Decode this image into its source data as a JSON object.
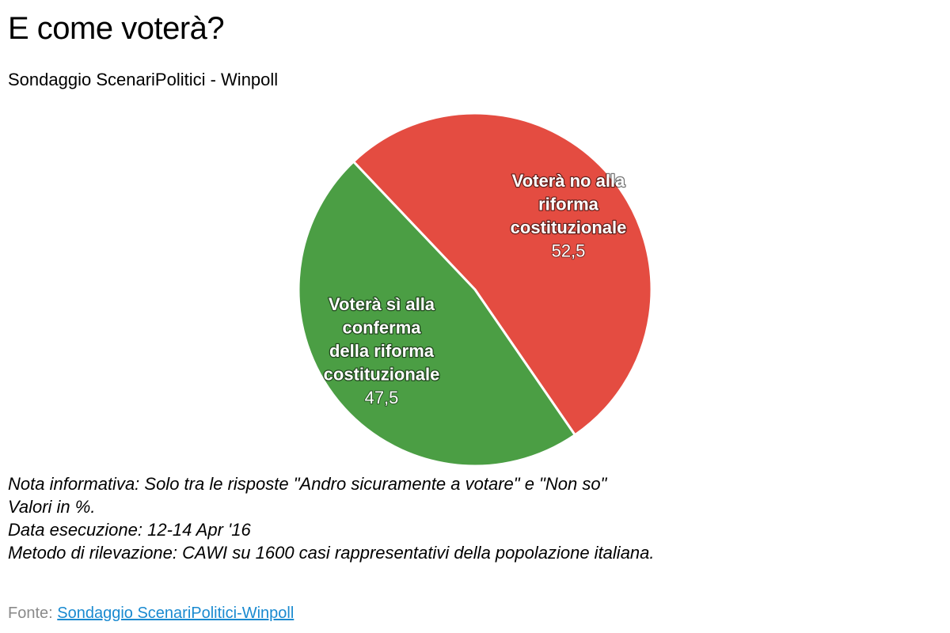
{
  "title": "E come voterà?",
  "subtitle": "Sondaggio ScenariPolitici - Winpoll",
  "chart_data": {
    "type": "pie",
    "title": "E come voterà?",
    "subtitle": "Sondaggio ScenariPolitici - Winpoll",
    "slices": [
      {
        "label_lines": [
          "Voterà no alla",
          "riforma",
          "costituzionale"
        ],
        "value": 52.5,
        "value_text": "52,5",
        "color": "#e44c41"
      },
      {
        "label_lines": [
          "Voterà sì alla",
          "conferma",
          "della riforma",
          "costituzionale"
        ],
        "value": 47.5,
        "value_text": "47,5",
        "color": "#4b9e44"
      }
    ],
    "separator_color": "#ffffff"
  },
  "notes": [
    "Nota informativa: Solo tra le risposte \"Andro sicuramente a votare\" e \"Non so\"",
    "Valori in %.",
    "Data esecuzione: 12-14 Apr '16",
    "Metodo di rilevazione: CAWI su 1600 casi rappresentativi della popolazione italiana."
  ],
  "source": {
    "prefix": "Fonte: ",
    "link_text": "Sondaggio ScenariPolitici-Winpoll"
  }
}
